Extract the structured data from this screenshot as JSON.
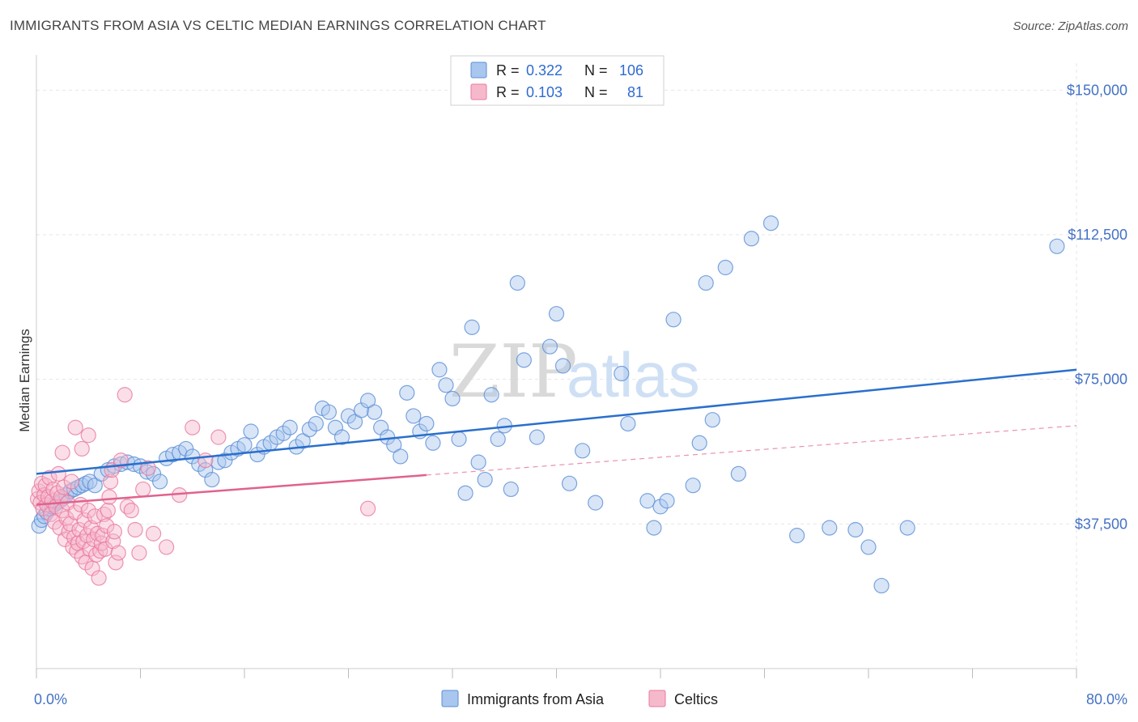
{
  "title": "IMMIGRANTS FROM ASIA VS CELTIC MEDIAN EARNINGS CORRELATION CHART",
  "source": "Source: ZipAtlas.com",
  "watermark": {
    "zip": "ZIP",
    "atlas": "atlas"
  },
  "legend_top": {
    "rows": [
      {
        "r_label": "R =",
        "r_value": "0.322",
        "n_label": "N =",
        "n_value": "106"
      },
      {
        "r_label": "R =",
        "r_value": "0.103",
        "n_label": "N =",
        "n_value": "81"
      }
    ]
  },
  "chart_data": {
    "type": "scatter",
    "title": "IMMIGRANTS FROM ASIA VS CELTIC MEDIAN EARNINGS CORRELATION CHART",
    "ylabel": "Median Earnings",
    "xlabel": "",
    "xlim": [
      0,
      80
    ],
    "ylim": [
      0,
      157000
    ],
    "x_tick_labels": [
      {
        "value": 0,
        "label": "0.0%"
      },
      {
        "value": 80,
        "label": "80.0%"
      }
    ],
    "y_tick_labels": [
      {
        "value": 37500,
        "label": "$37,500"
      },
      {
        "value": 75000,
        "label": "$75,000"
      },
      {
        "value": 112500,
        "label": "$112,500"
      },
      {
        "value": 150000,
        "label": "$150,000"
      }
    ],
    "grid": true,
    "legend_position": "top-center",
    "colors": {
      "asia_fill": "#a9c6ee",
      "asia_stroke": "#5b8fd6",
      "asia_line": "#2a6fcc",
      "celtic_fill": "#f6b9cc",
      "celtic_stroke": "#e8799d",
      "celtic_line": "#e0628d",
      "grid": "#e6e6e6",
      "tick_text": "#4472c4"
    },
    "series": [
      {
        "name": "Immigrants from Asia",
        "R": 0.322,
        "N": 106,
        "trend": {
          "x": [
            0,
            80
          ],
          "y": [
            50500,
            77500
          ],
          "dashed_from": null
        },
        "points": [
          [
            0.2,
            37000
          ],
          [
            0.4,
            38500
          ],
          [
            0.6,
            39500
          ],
          [
            0.8,
            40500
          ],
          [
            1.0,
            41500
          ],
          [
            1.2,
            42000
          ],
          [
            1.4,
            42500
          ],
          [
            1.6,
            43000
          ],
          [
            1.8,
            43500
          ],
          [
            2.0,
            44000
          ],
          [
            2.3,
            45000
          ],
          [
            2.6,
            46000
          ],
          [
            2.9,
            46500
          ],
          [
            3.2,
            47000
          ],
          [
            3.5,
            47500
          ],
          [
            3.8,
            48000
          ],
          [
            4.1,
            48500
          ],
          [
            4.5,
            47500
          ],
          [
            5.0,
            50500
          ],
          [
            5.5,
            51500
          ],
          [
            6.0,
            52500
          ],
          [
            6.5,
            53000
          ],
          [
            7.0,
            53500
          ],
          [
            7.5,
            53000
          ],
          [
            8.0,
            52500
          ],
          [
            8.5,
            51000
          ],
          [
            9.0,
            50500
          ],
          [
            9.5,
            48500
          ],
          [
            10.0,
            54500
          ],
          [
            10.5,
            55500
          ],
          [
            11.0,
            56000
          ],
          [
            11.5,
            57000
          ],
          [
            12.0,
            55000
          ],
          [
            12.5,
            53000
          ],
          [
            13.0,
            51500
          ],
          [
            13.5,
            49000
          ],
          [
            14.0,
            53500
          ],
          [
            14.5,
            54000
          ],
          [
            15.0,
            56000
          ],
          [
            15.5,
            57000
          ],
          [
            16.0,
            58000
          ],
          [
            16.5,
            61500
          ],
          [
            17.0,
            55500
          ],
          [
            17.5,
            57500
          ],
          [
            18.0,
            58500
          ],
          [
            18.5,
            60000
          ],
          [
            19.0,
            61000
          ],
          [
            19.5,
            62500
          ],
          [
            20.0,
            57500
          ],
          [
            20.5,
            59000
          ],
          [
            21.0,
            62000
          ],
          [
            21.5,
            63500
          ],
          [
            22.0,
            67500
          ],
          [
            22.5,
            66500
          ],
          [
            23.0,
            62500
          ],
          [
            23.5,
            60000
          ],
          [
            24.0,
            65500
          ],
          [
            24.5,
            64000
          ],
          [
            25.0,
            67000
          ],
          [
            25.5,
            69500
          ],
          [
            26.0,
            66500
          ],
          [
            26.5,
            62500
          ],
          [
            27.0,
            60000
          ],
          [
            27.5,
            58000
          ],
          [
            28.0,
            55000
          ],
          [
            28.5,
            71500
          ],
          [
            29.0,
            65500
          ],
          [
            29.5,
            61500
          ],
          [
            30.0,
            63500
          ],
          [
            30.5,
            58500
          ],
          [
            31.0,
            77500
          ],
          [
            31.5,
            73500
          ],
          [
            32.0,
            70000
          ],
          [
            32.5,
            59500
          ],
          [
            33.0,
            45500
          ],
          [
            33.5,
            88500
          ],
          [
            34.0,
            53500
          ],
          [
            34.5,
            49000
          ],
          [
            35.0,
            71000
          ],
          [
            35.5,
            59500
          ],
          [
            36.0,
            63000
          ],
          [
            36.5,
            46500
          ],
          [
            37.0,
            100000
          ],
          [
            37.5,
            80000
          ],
          [
            38.5,
            60000
          ],
          [
            39.5,
            83500
          ],
          [
            40.0,
            92000
          ],
          [
            40.5,
            78500
          ],
          [
            41.0,
            48000
          ],
          [
            42.0,
            56500
          ],
          [
            43.0,
            43000
          ],
          [
            45.0,
            76500
          ],
          [
            45.5,
            63500
          ],
          [
            47.0,
            43500
          ],
          [
            47.5,
            36500
          ],
          [
            48.0,
            42000
          ],
          [
            48.5,
            43500
          ],
          [
            49.0,
            90500
          ],
          [
            50.5,
            47500
          ],
          [
            51.0,
            58500
          ],
          [
            51.5,
            100000
          ],
          [
            52.0,
            64500
          ],
          [
            53.0,
            104000
          ],
          [
            54.0,
            50500
          ],
          [
            55.0,
            111500
          ],
          [
            56.5,
            115500
          ],
          [
            58.5,
            34500
          ],
          [
            61.0,
            36500
          ],
          [
            63.0,
            36000
          ],
          [
            64.0,
            31500
          ],
          [
            65.0,
            21500
          ],
          [
            67.0,
            36500
          ],
          [
            78.5,
            109500
          ]
        ]
      },
      {
        "name": "Celtics",
        "R": 0.103,
        "N": 81,
        "trend": {
          "x": [
            0,
            80
          ],
          "y": [
            42500,
            63000
          ],
          "solid_until_x": 30
        },
        "points": [
          [
            0.1,
            44000
          ],
          [
            0.2,
            46000
          ],
          [
            0.3,
            43000
          ],
          [
            0.4,
            48000
          ],
          [
            0.5,
            41500
          ],
          [
            0.6,
            45000
          ],
          [
            0.7,
            47500
          ],
          [
            0.8,
            42500
          ],
          [
            0.9,
            44500
          ],
          [
            1.0,
            49500
          ],
          [
            1.1,
            40000
          ],
          [
            1.2,
            43500
          ],
          [
            1.3,
            46500
          ],
          [
            1.4,
            38000
          ],
          [
            1.5,
            42000
          ],
          [
            1.6,
            45500
          ],
          [
            1.7,
            50500
          ],
          [
            1.8,
            36500
          ],
          [
            1.9,
            44500
          ],
          [
            2.0,
            41000
          ],
          [
            2.1,
            47000
          ],
          [
            2.2,
            33500
          ],
          [
            2.3,
            39000
          ],
          [
            2.4,
            43000
          ],
          [
            2.5,
            35500
          ],
          [
            2.6,
            37500
          ],
          [
            2.7,
            48500
          ],
          [
            2.8,
            31500
          ],
          [
            2.9,
            34000
          ],
          [
            3.0,
            40500
          ],
          [
            3.1,
            30500
          ],
          [
            3.2,
            32500
          ],
          [
            3.3,
            36000
          ],
          [
            3.4,
            42500
          ],
          [
            3.5,
            29000
          ],
          [
            3.6,
            33000
          ],
          [
            3.7,
            38500
          ],
          [
            3.8,
            27500
          ],
          [
            3.9,
            34500
          ],
          [
            4.0,
            41000
          ],
          [
            4.1,
            31000
          ],
          [
            4.2,
            36500
          ],
          [
            4.3,
            26000
          ],
          [
            4.4,
            33500
          ],
          [
            4.5,
            39500
          ],
          [
            4.6,
            29500
          ],
          [
            4.7,
            35000
          ],
          [
            4.8,
            23500
          ],
          [
            4.9,
            30500
          ],
          [
            5.0,
            32500
          ],
          [
            5.1,
            34500
          ],
          [
            5.2,
            40000
          ],
          [
            5.3,
            31000
          ],
          [
            5.4,
            37000
          ],
          [
            5.5,
            41000
          ],
          [
            5.6,
            44500
          ],
          [
            5.7,
            48500
          ],
          [
            5.8,
            51500
          ],
          [
            5.9,
            33000
          ],
          [
            6.0,
            35500
          ],
          [
            6.1,
            27500
          ],
          [
            6.3,
            30000
          ],
          [
            6.5,
            54000
          ],
          [
            6.8,
            71000
          ],
          [
            7.0,
            42000
          ],
          [
            7.3,
            41000
          ],
          [
            7.6,
            36000
          ],
          [
            7.9,
            30000
          ],
          [
            8.2,
            46500
          ],
          [
            8.6,
            52000
          ],
          [
            9.0,
            35000
          ],
          [
            10.0,
            31500
          ],
          [
            11.0,
            45000
          ],
          [
            12.0,
            62500
          ],
          [
            13.0,
            54000
          ],
          [
            14.0,
            60000
          ],
          [
            2.0,
            56000
          ],
          [
            3.0,
            62500
          ],
          [
            3.5,
            57000
          ],
          [
            4.0,
            60500
          ],
          [
            25.5,
            41500
          ]
        ]
      }
    ]
  },
  "legend_bottom": {
    "items": [
      {
        "label": "Immigrants from Asia"
      },
      {
        "label": "Celtics"
      }
    ]
  }
}
